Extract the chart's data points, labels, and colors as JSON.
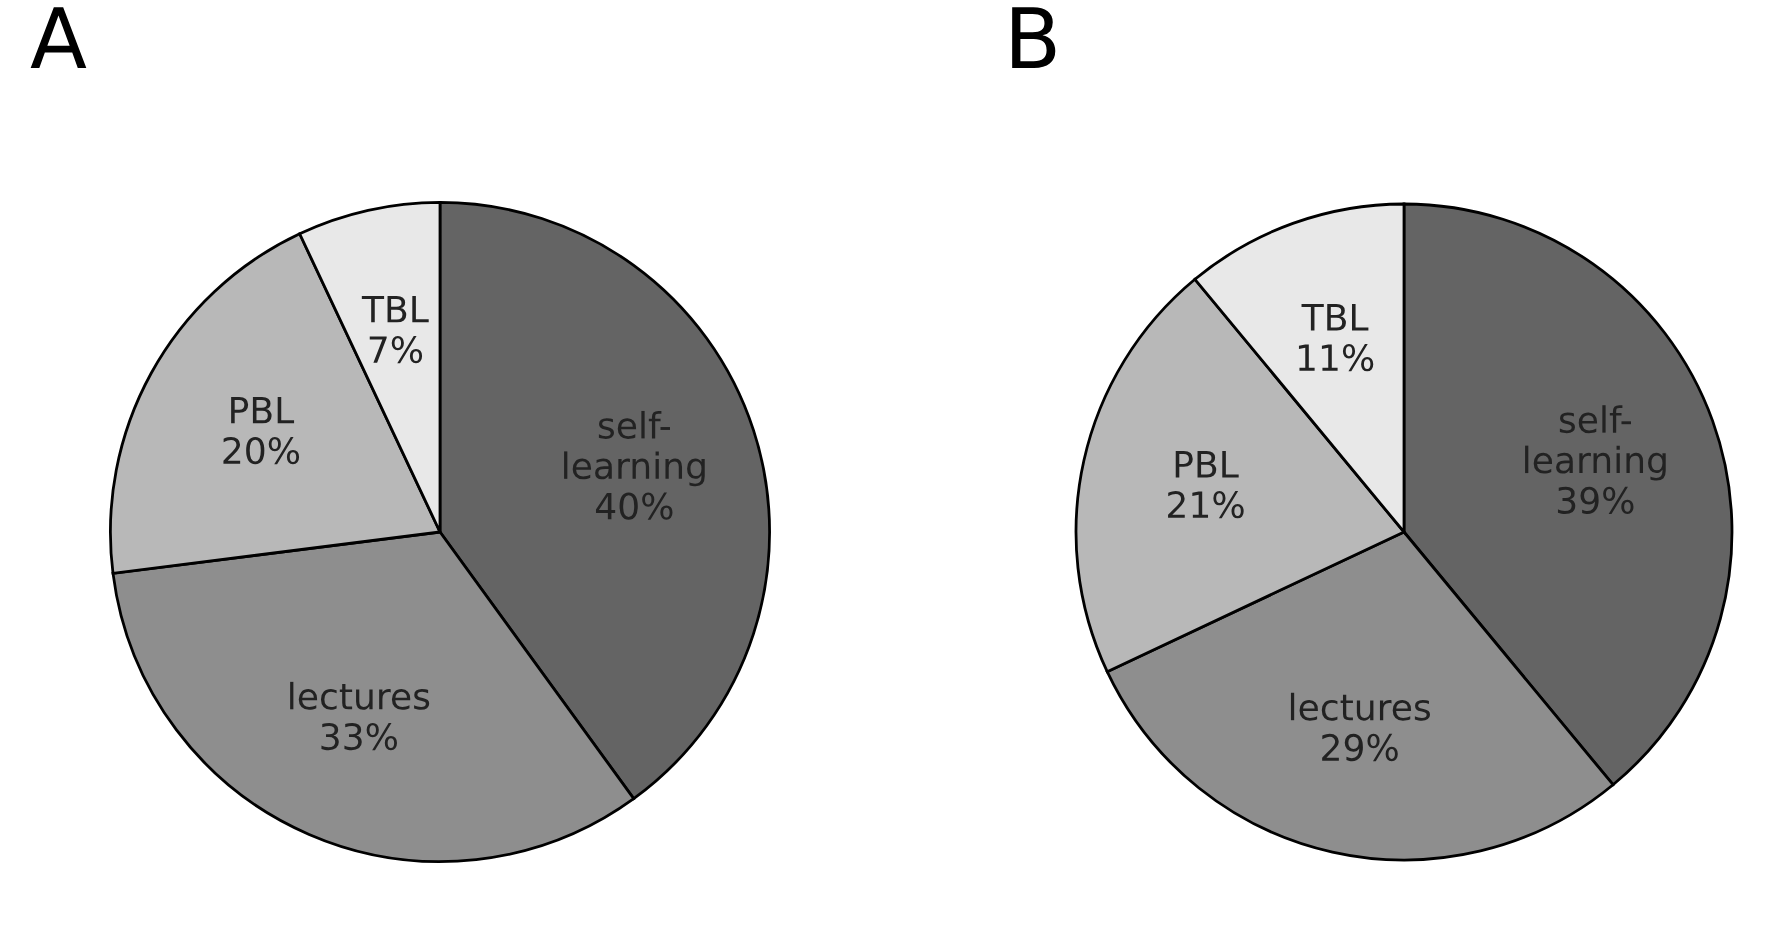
{
  "chart_data": [
    {
      "type": "pie",
      "title": "A",
      "categories": [
        "self-\nlearning",
        "lectures",
        "PBL",
        "TBL"
      ],
      "values": [
        40,
        33,
        20,
        7
      ],
      "value_labels": [
        "40%",
        "33%",
        "20%",
        "7%"
      ],
      "colors": [
        "#646464",
        "#8e8e8e",
        "#b8b8b8",
        "#e8e8e8"
      ]
    },
    {
      "type": "pie",
      "title": "B",
      "categories": [
        "self-\nlearning",
        "lectures",
        "PBL",
        "TBL"
      ],
      "values": [
        39,
        29,
        21,
        11
      ],
      "value_labels": [
        "39%",
        "29%",
        "21%",
        "11%"
      ],
      "colors": [
        "#646464",
        "#8e8e8e",
        "#b8b8b8",
        "#e8e8e8"
      ]
    }
  ]
}
